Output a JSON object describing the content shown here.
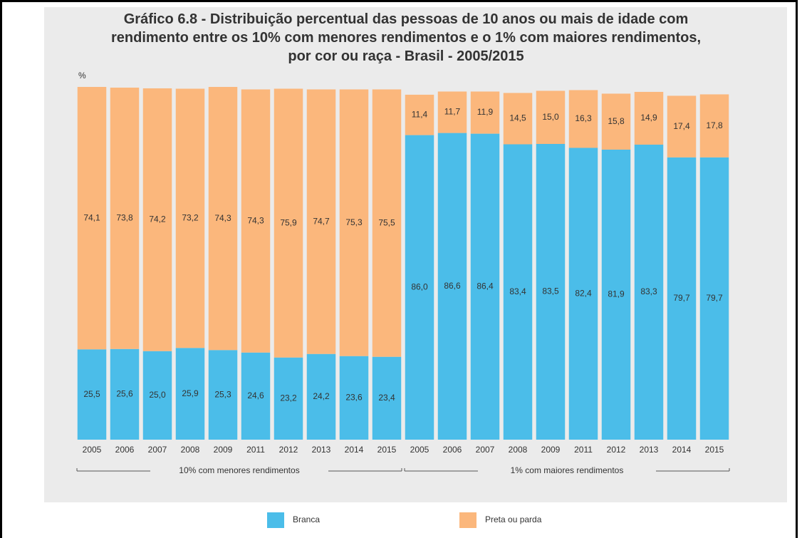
{
  "chart_data": {
    "type": "stacked_bar",
    "title": "Gráfico 6.8 - Distribuição percentual das pessoas de 10 anos ou mais de idade com rendimento entre os 10%  com menores rendimentos e o 1% com maiores rendimentos, por cor ou raça - Brasil - 2005/2015",
    "ylabel": "%",
    "categories": [
      "2005",
      "2006",
      "2007",
      "2008",
      "2009",
      "2011",
      "2012",
      "2013",
      "2014",
      "2015",
      "2005",
      "2006",
      "2007",
      "2008",
      "2009",
      "2011",
      "2012",
      "2013",
      "2014",
      "2015"
    ],
    "groups": [
      "10% com menores rendimentos",
      "1% com maiores rendimentos"
    ],
    "ylim": [
      0,
      100
    ],
    "legend": "bottom",
    "series": [
      {
        "name": "Branca",
        "color": "#4bbde9",
        "values": [
          25.5,
          25.6,
          25.0,
          25.9,
          25.3,
          24.6,
          23.2,
          24.2,
          23.6,
          23.4,
          86.0,
          86.6,
          86.4,
          83.4,
          83.5,
          82.4,
          81.9,
          83.3,
          79.7,
          79.7
        ],
        "value_labels": [
          "25,5",
          "25,6",
          "25,0",
          "25,9",
          "25,3",
          "24,6",
          "23,2",
          "24,2",
          "23,6",
          "23,4",
          "86,0",
          "86,6",
          "86,4",
          "83,4",
          "83,5",
          "82,4",
          "81,9",
          "83,3",
          "79,7",
          "79,7"
        ]
      },
      {
        "name": "Preta ou parda",
        "color": "#fbb77c",
        "values": [
          74.1,
          73.8,
          74.2,
          73.2,
          74.3,
          74.3,
          75.9,
          74.7,
          75.3,
          75.5,
          11.4,
          11.7,
          11.9,
          14.5,
          15.0,
          16.3,
          15.8,
          14.9,
          17.4,
          17.8
        ],
        "value_labels": [
          "74,1",
          "73,8",
          "74,2",
          "73,2",
          "74,3",
          "74,3",
          "75,9",
          "74,7",
          "75,3",
          "75,5",
          "11,4",
          "11,7",
          "11,9",
          "14,5",
          "15,0",
          "16,3",
          "15,8",
          "14,9",
          "17,4",
          "17,8"
        ]
      }
    ]
  }
}
